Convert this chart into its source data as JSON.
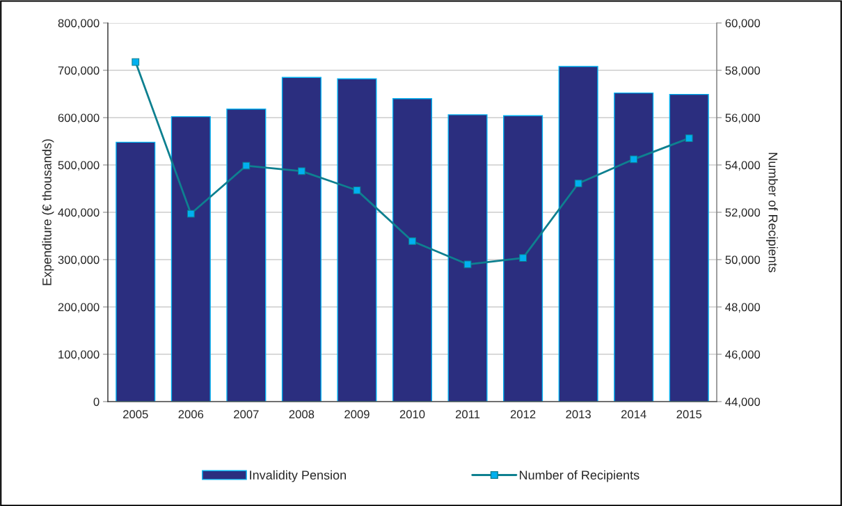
{
  "chart_data": {
    "type": "bar",
    "categories": [
      "2005",
      "2006",
      "2007",
      "2008",
      "2009",
      "2010",
      "2011",
      "2012",
      "2013",
      "2014",
      "2015"
    ],
    "ylabel": "Expenditure (€ thousands)",
    "y2label": "Number of Recipients",
    "ylim": [
      0,
      800000
    ],
    "yticks": [
      {
        "value": 0,
        "label": "0"
      },
      {
        "value": 100000,
        "label": "100,000"
      },
      {
        "value": 200000,
        "label": "200,000"
      },
      {
        "value": 300000,
        "label": "300,000"
      },
      {
        "value": 400000,
        "label": "400,000"
      },
      {
        "value": 500000,
        "label": "500,000"
      },
      {
        "value": 600000,
        "label": "600,000"
      },
      {
        "value": 700000,
        "label": "700,000"
      },
      {
        "value": 800000,
        "label": "800,000"
      }
    ],
    "y2lim": [
      44000,
      60000
    ],
    "y2ticks": [
      {
        "value": 44000,
        "label": "44,000"
      },
      {
        "value": 46000,
        "label": "46,000"
      },
      {
        "value": 48000,
        "label": "48,000"
      },
      {
        "value": 50000,
        "label": "50,000"
      },
      {
        "value": 52000,
        "label": "52,000"
      },
      {
        "value": 54000,
        "label": "54,000"
      },
      {
        "value": 56000,
        "label": "56,000"
      },
      {
        "value": 58000,
        "label": "58,000"
      },
      {
        "value": 60000,
        "label": "60,000"
      }
    ],
    "grid": "y",
    "legend": "bottom",
    "series": [
      {
        "name": "Invalidity Pension",
        "color": "#2b2e7f",
        "values": [
          548000,
          602000,
          618000,
          685000,
          682000,
          640000,
          606000,
          604000,
          708000,
          652000,
          649000
        ]
      },
      {
        "name": "Number of Recipients",
        "type": "line",
        "axis": "y2",
        "color": "#0e8090",
        "marker": "square",
        "line_style": "solid",
        "values": [
          58350,
          51940,
          53970,
          53740,
          52930,
          50780,
          49800,
          50070,
          53220,
          54240,
          55130
        ]
      }
    ]
  }
}
